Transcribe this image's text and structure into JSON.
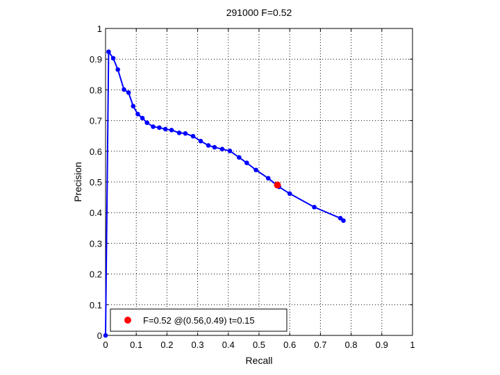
{
  "chart_data": {
    "type": "line",
    "title": "291000 F=0.52",
    "xlabel": "Recall",
    "ylabel": "Precision",
    "xlim": [
      0,
      1
    ],
    "ylim": [
      0,
      1
    ],
    "xticks": [
      "0",
      "0.1",
      "0.2",
      "0.3",
      "0.4",
      "0.5",
      "0.6",
      "0.7",
      "0.8",
      "0.9",
      "1"
    ],
    "yticks": [
      "0",
      "0.1",
      "0.2",
      "0.3",
      "0.4",
      "0.5",
      "0.6",
      "0.7",
      "0.8",
      "0.9",
      "1"
    ],
    "grid": true,
    "grid_style": "dotted",
    "legend_position": "bottom-left",
    "series": [
      {
        "color": "#0000ff",
        "marker": "dot",
        "points": [
          [
            0.0,
            0.0
          ],
          [
            0.01,
            0.924
          ],
          [
            0.025,
            0.903
          ],
          [
            0.04,
            0.866
          ],
          [
            0.06,
            0.801
          ],
          [
            0.075,
            0.791
          ],
          [
            0.09,
            0.747
          ],
          [
            0.105,
            0.721
          ],
          [
            0.12,
            0.708
          ],
          [
            0.135,
            0.693
          ],
          [
            0.155,
            0.68
          ],
          [
            0.175,
            0.677
          ],
          [
            0.195,
            0.672
          ],
          [
            0.215,
            0.669
          ],
          [
            0.24,
            0.66
          ],
          [
            0.26,
            0.658
          ],
          [
            0.285,
            0.649
          ],
          [
            0.31,
            0.633
          ],
          [
            0.335,
            0.619
          ],
          [
            0.355,
            0.613
          ],
          [
            0.38,
            0.607
          ],
          [
            0.405,
            0.601
          ],
          [
            0.435,
            0.58
          ],
          [
            0.46,
            0.562
          ],
          [
            0.49,
            0.539
          ],
          [
            0.53,
            0.512
          ],
          [
            0.565,
            0.484
          ],
          [
            0.6,
            0.462
          ],
          [
            0.68,
            0.418
          ],
          [
            0.765,
            0.382
          ],
          [
            0.775,
            0.374
          ]
        ]
      }
    ],
    "highlight": {
      "x": 0.56,
      "y": 0.49,
      "color": "#ff0000"
    },
    "legend": {
      "label": "F=0.52 @(0.56,0.49) t=0.15",
      "color": "#ff0000"
    },
    "colors": {
      "line": "#0000ff",
      "highlight": "#ff0000",
      "grid": "#000000",
      "axes": "#000000"
    }
  }
}
